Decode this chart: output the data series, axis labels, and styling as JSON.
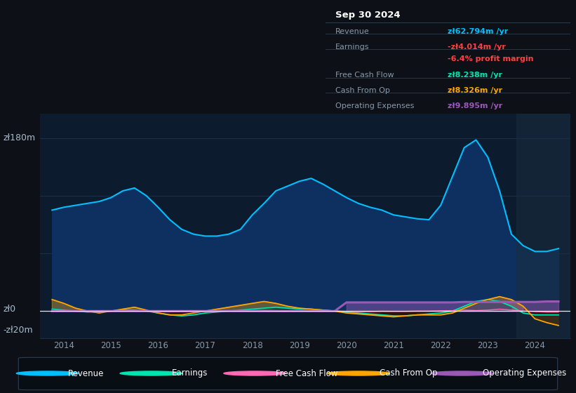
{
  "bg_color": "#0d1117",
  "chart_bg": "#0d1b2e",
  "grid_color": "#253a55",
  "ylabel_top": "zł180m",
  "ylabel_zero": "zł0",
  "ylabel_neg": "-zł20m",
  "xticks": [
    2014,
    2015,
    2016,
    2017,
    2018,
    2019,
    2020,
    2021,
    2022,
    2023,
    2024
  ],
  "ylim": [
    -28,
    205
  ],
  "revenue_color": "#00bfff",
  "earnings_color": "#00e5b0",
  "fcf_color": "#ff69b4",
  "cashfromop_color": "#ffa500",
  "opex_color": "#9b59b6",
  "revenue_fill": "#0d3060",
  "info_title": "Sep 30 2024",
  "years": [
    2013.75,
    2014.0,
    2014.25,
    2014.5,
    2014.75,
    2015.0,
    2015.25,
    2015.5,
    2015.75,
    2016.0,
    2016.25,
    2016.5,
    2016.75,
    2017.0,
    2017.25,
    2017.5,
    2017.75,
    2018.0,
    2018.25,
    2018.5,
    2018.75,
    2019.0,
    2019.25,
    2019.5,
    2019.75,
    2020.0,
    2020.25,
    2020.5,
    2020.75,
    2021.0,
    2021.25,
    2021.5,
    2021.75,
    2022.0,
    2022.25,
    2022.5,
    2022.75,
    2023.0,
    2023.25,
    2023.5,
    2023.75,
    2024.0,
    2024.25,
    2024.5
  ],
  "revenue": [
    105,
    108,
    110,
    112,
    114,
    118,
    125,
    128,
    120,
    108,
    95,
    85,
    80,
    78,
    78,
    80,
    85,
    100,
    112,
    125,
    130,
    135,
    138,
    132,
    125,
    118,
    112,
    108,
    105,
    100,
    98,
    96,
    95,
    110,
    140,
    170,
    178,
    160,
    125,
    80,
    68,
    62,
    62,
    65
  ],
  "earnings": [
    2,
    1,
    0,
    -1,
    -1,
    0,
    1,
    1,
    0,
    -2,
    -4,
    -5,
    -4,
    -2,
    -1,
    0,
    1,
    2,
    3,
    4,
    3,
    2,
    2,
    1,
    0,
    -1,
    -2,
    -3,
    -4,
    -5,
    -5,
    -4,
    -3,
    -2,
    0,
    5,
    10,
    12,
    10,
    5,
    -2,
    -4,
    -4,
    -4
  ],
  "fcf": [
    0.5,
    0.3,
    0,
    -0.3,
    -0.5,
    0,
    0,
    0.3,
    0,
    -0.5,
    -0.8,
    -0.5,
    -0.2,
    0,
    0,
    0,
    0.3,
    0.5,
    0.8,
    0.5,
    0.2,
    0.3,
    0.3,
    0,
    0,
    -0.3,
    -0.5,
    -0.5,
    -0.2,
    -0.3,
    -0.3,
    0,
    0,
    0.3,
    0.5,
    1,
    0.5,
    1,
    2,
    1,
    0,
    -0.5,
    -1,
    -1
  ],
  "cashfromop": [
    12,
    8,
    3,
    0,
    -2,
    0,
    2,
    4,
    1,
    -2,
    -4,
    -4,
    -2,
    0,
    2,
    4,
    6,
    8,
    10,
    8,
    5,
    3,
    2,
    1,
    0,
    -2,
    -3,
    -4,
    -5,
    -6,
    -5,
    -4,
    -4,
    -4,
    -2,
    3,
    8,
    12,
    15,
    12,
    5,
    -8,
    -12,
    -15
  ],
  "opex": [
    0,
    0,
    0,
    0,
    0,
    0,
    0,
    0,
    0,
    0,
    0,
    0,
    0,
    0,
    0,
    0,
    0,
    0,
    0,
    0,
    0,
    0,
    0,
    0,
    0,
    9,
    9,
    9,
    9,
    9,
    9,
    9,
    9,
    9,
    9,
    9.5,
    9.5,
    9.5,
    9.5,
    9.5,
    9.5,
    9.5,
    10,
    10
  ]
}
